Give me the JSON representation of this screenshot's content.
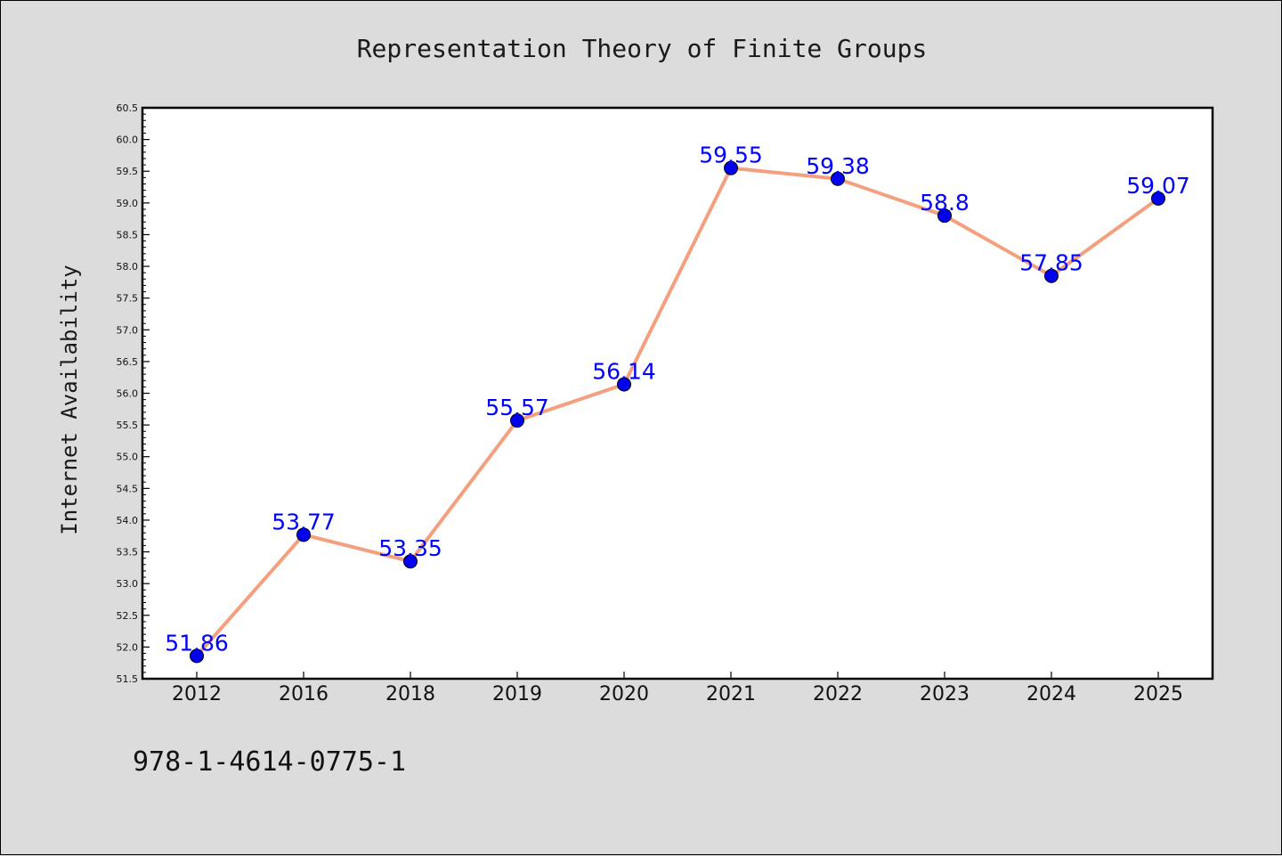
{
  "chart_data": {
    "type": "line",
    "title": "Representation Theory of Finite Groups",
    "xlabel": "",
    "ylabel": "Internet Availability",
    "categories": [
      "2012",
      "2016",
      "2018",
      "2019",
      "2020",
      "2021",
      "2022",
      "2023",
      "2024",
      "2025"
    ],
    "series": [
      {
        "values": [
          51.86,
          53.77,
          53.35,
          55.57,
          56.14,
          59.55,
          59.38,
          58.8,
          57.85,
          59.07
        ],
        "labels": [
          "51.86",
          "53.77",
          "53.35",
          "55.57",
          "56.14",
          "59.55",
          "59.38",
          "58.8",
          "57.85",
          "59.07"
        ],
        "line_color": "#f4a07e",
        "marker_color": "#0000ee"
      }
    ],
    "ylim": [
      51.5,
      60.5
    ],
    "yticks": [
      "51.5",
      "52.0",
      "52.5",
      "53.0",
      "53.5",
      "54.0",
      "54.5",
      "55.0",
      "55.5",
      "56.0",
      "56.5",
      "57.0",
      "57.5",
      "58.0",
      "58.5",
      "59.0",
      "59.5",
      "60.0",
      "60.5"
    ],
    "grid": false,
    "label_color": "#0000ff",
    "background": "#dcdcdc",
    "plot_background": "#ffffff"
  },
  "footer": {
    "isbn": "978-1-4614-0775-1"
  }
}
